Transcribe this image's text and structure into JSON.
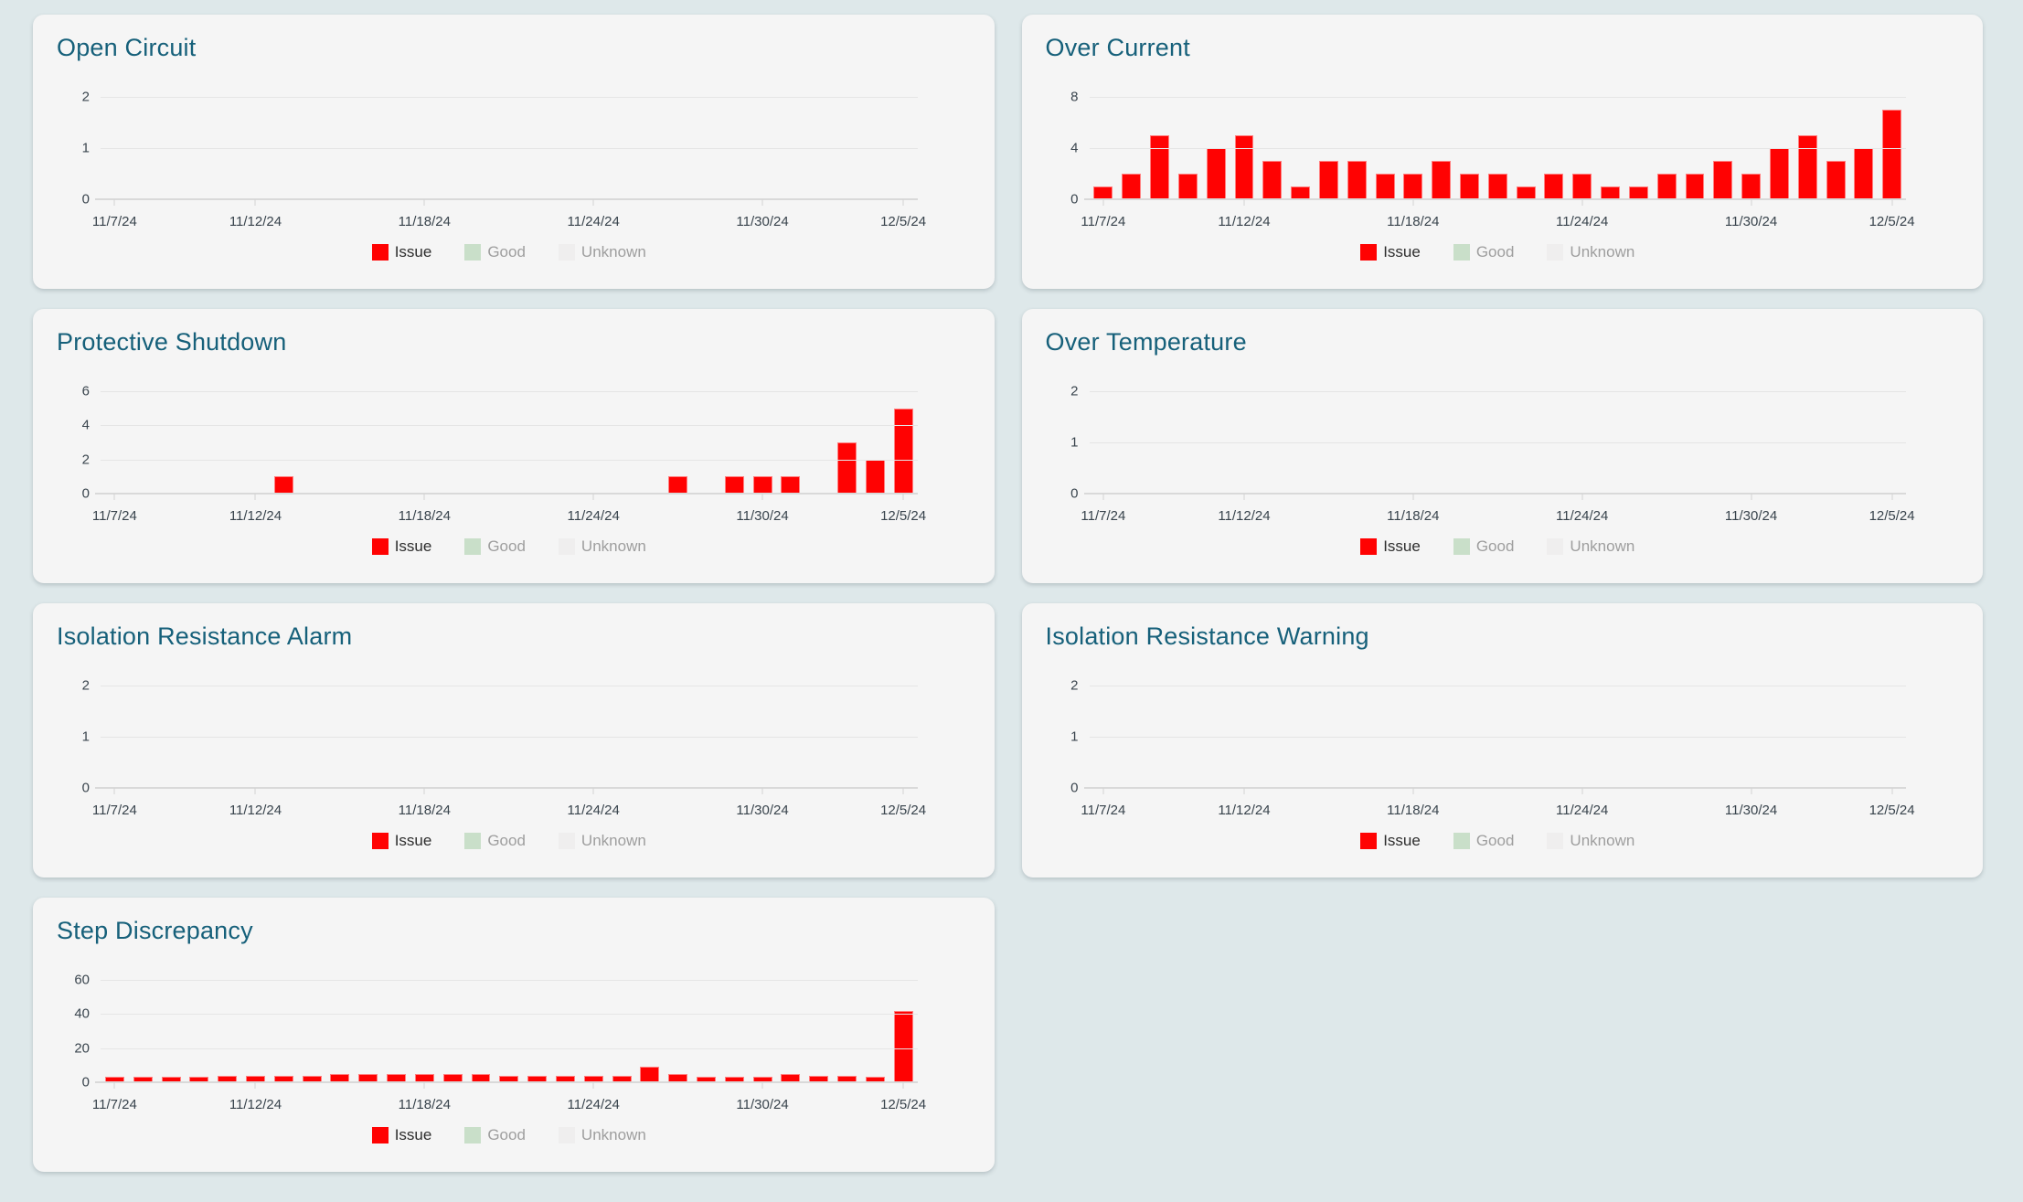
{
  "page": {
    "background": "#dee8ea",
    "card_background": "#f5f5f5",
    "title_color": "#16607a",
    "axis_text_color": "#38434c"
  },
  "legend": {
    "items": [
      {
        "key": "issue",
        "label": "Issue",
        "color": "#ff0202",
        "text_style": "issue"
      },
      {
        "key": "good",
        "label": "Good",
        "color": "#c9dfc9",
        "text_style": "muted"
      },
      {
        "key": "unknown",
        "label": "Unknown",
        "color": "#efeeee",
        "text_style": "muted"
      }
    ]
  },
  "chart_data": {
    "shared": {
      "type": "bar",
      "categories": [
        "11/7/24",
        "11/8/24",
        "11/9/24",
        "11/10/24",
        "11/11/24",
        "11/12/24",
        "11/13/24",
        "11/14/24",
        "11/15/24",
        "11/16/24",
        "11/17/24",
        "11/18/24",
        "11/19/24",
        "11/20/24",
        "11/21/24",
        "11/22/24",
        "11/23/24",
        "11/24/24",
        "11/25/24",
        "11/26/24",
        "11/27/24",
        "11/28/24",
        "11/29/24",
        "11/30/24",
        "12/1/24",
        "12/2/24",
        "12/3/24",
        "12/4/24",
        "12/5/24"
      ],
      "x_tick_labels": [
        "11/7/24",
        "11/12/24",
        "11/18/24",
        "11/24/24",
        "11/30/24",
        "12/5/24"
      ],
      "x_tick_indices": [
        0,
        5,
        11,
        17,
        23,
        28
      ],
      "series_name": "Issue",
      "bar_color": "#ff0202",
      "grid": true,
      "legend_position": "bottom"
    },
    "charts": [
      {
        "title": "Open Circuit",
        "ylim": [
          0,
          2
        ],
        "y_ticks": [
          0,
          1,
          2
        ],
        "values": []
      },
      {
        "title": "Over Current",
        "ylim": [
          0,
          8
        ],
        "y_ticks": [
          0,
          4,
          8
        ],
        "values": [
          1,
          2,
          5,
          2,
          4,
          5,
          3,
          1,
          3,
          3,
          2,
          2,
          3,
          2,
          2,
          1,
          2,
          2,
          1,
          1,
          2,
          2,
          3,
          2,
          4,
          5,
          3,
          4,
          7
        ]
      },
      {
        "title": "Protective Shutdown",
        "ylim": [
          0,
          6
        ],
        "y_ticks": [
          0,
          2,
          4,
          6
        ],
        "values": [
          0,
          0,
          0,
          0,
          0,
          0,
          1,
          0,
          0,
          0,
          0,
          0,
          0,
          0,
          0,
          0,
          0,
          0,
          0,
          0,
          1,
          0,
          1,
          1,
          1,
          0,
          3,
          2,
          5
        ]
      },
      {
        "title": "Over Temperature",
        "ylim": [
          0,
          2
        ],
        "y_ticks": [
          0,
          1,
          2
        ],
        "values": []
      },
      {
        "title": "Isolation Resistance Alarm",
        "ylim": [
          0,
          2
        ],
        "y_ticks": [
          0,
          1,
          2
        ],
        "values": []
      },
      {
        "title": "Isolation Resistance Warning",
        "ylim": [
          0,
          2
        ],
        "y_ticks": [
          0,
          1,
          2
        ],
        "values": []
      },
      {
        "title": "Step Discrepancy",
        "ylim": [
          0,
          60
        ],
        "y_ticks": [
          0,
          20,
          40,
          60
        ],
        "values": [
          3,
          3,
          3,
          3,
          4,
          4,
          4,
          4,
          5,
          5,
          5,
          5,
          5,
          5,
          4,
          4,
          4,
          4,
          4,
          9,
          5,
          3,
          3,
          3,
          5,
          4,
          4,
          3,
          42
        ]
      }
    ]
  }
}
